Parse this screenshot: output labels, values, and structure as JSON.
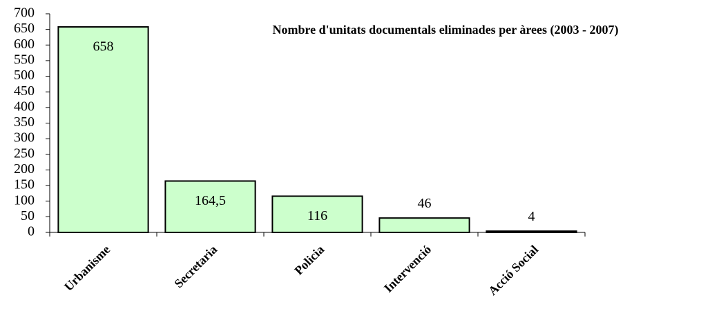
{
  "chart_data": {
    "type": "bar",
    "title": "Nombre d'unitats documentals eliminades per àrees (2003 - 2007)",
    "categories": [
      "Urbanisme",
      "Secretaria",
      "Policia",
      "Intervenció",
      "Acció Social"
    ],
    "values": [
      658,
      164.5,
      116,
      46,
      4
    ],
    "value_labels": [
      "658",
      "164,5",
      "116",
      "46",
      "4"
    ],
    "color": "#ccffcc",
    "ylim": [
      0,
      700
    ],
    "yticks": [
      0,
      50,
      100,
      150,
      200,
      250,
      300,
      350,
      400,
      450,
      500,
      550,
      600,
      650,
      700
    ],
    "grid": false
  }
}
